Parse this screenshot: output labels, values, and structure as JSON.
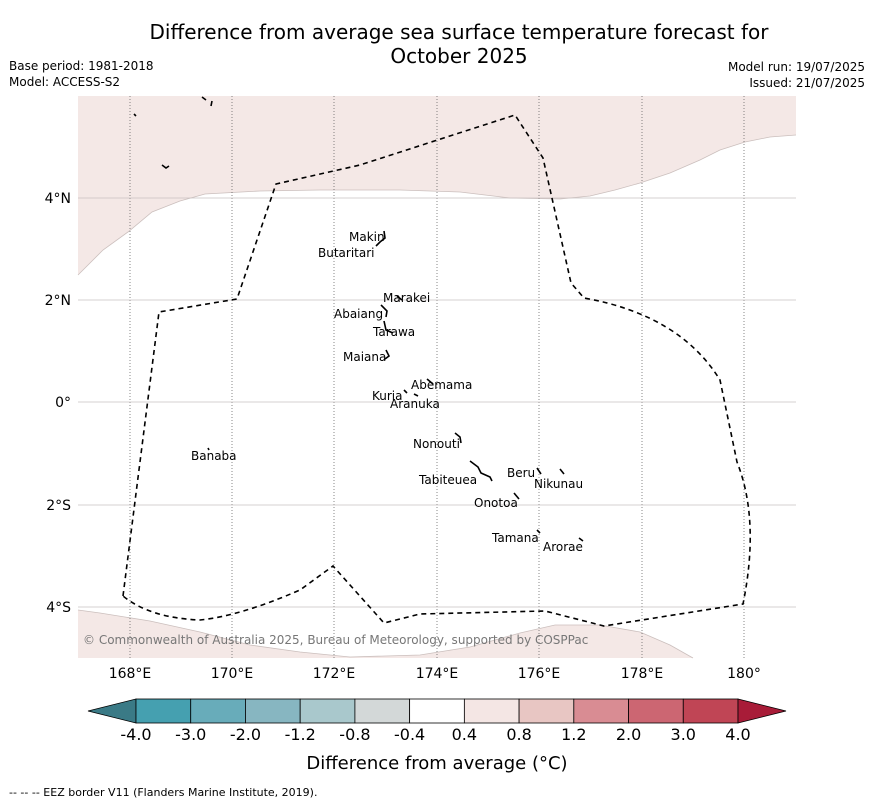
{
  "header": {
    "title_line1": "Difference from average sea surface temperature forecast for",
    "title_line2": "October 2025",
    "base_period": "Base period: 1981-2018",
    "model": "Model: ACCESS-S2",
    "model_run": "Model run: 19/07/2025",
    "issued": "Issued: 21/07/2025"
  },
  "map": {
    "lon_ticks": [
      "168°E",
      "170°E",
      "172°E",
      "174°E",
      "176°E",
      "178°E",
      "180°"
    ],
    "lat_ticks": [
      "4°N",
      "2°N",
      "0°",
      "2°S",
      "4°S"
    ],
    "anomaly_fill_color": "#f4e8e6",
    "islands": [
      {
        "name": "Makin"
      },
      {
        "name": "Butaritari"
      },
      {
        "name": "Marakei"
      },
      {
        "name": "Abaiang"
      },
      {
        "name": "Tarawa"
      },
      {
        "name": "Maiana"
      },
      {
        "name": "Abemama"
      },
      {
        "name": "Kuria"
      },
      {
        "name": "Aranuka"
      },
      {
        "name": "Nonouti"
      },
      {
        "name": "Banaba"
      },
      {
        "name": "Beru"
      },
      {
        "name": "Tabiteuea"
      },
      {
        "name": "Nikunau"
      },
      {
        "name": "Onotoa"
      },
      {
        "name": "Tamana"
      },
      {
        "name": "Arorae"
      }
    ],
    "copyright": "© Commonwealth of Australia 2025, Bureau of Meteorology, supported by COSPPac"
  },
  "colorbar": {
    "labels": [
      "-4.0",
      "-3.0",
      "-2.0",
      "-1.2",
      "-0.8",
      "-0.4",
      "0.4",
      "0.8",
      "1.2",
      "2.0",
      "3.0",
      "4.0"
    ],
    "colors": [
      "#3a7a86",
      "#45a0b0",
      "#68acba",
      "#87b6c1",
      "#a9c8cc",
      "#d3d8d8",
      "#ffffff",
      "#f4e6e4",
      "#e8c6c3",
      "#d98c93",
      "#cc6672",
      "#c04555",
      "#a81c38"
    ],
    "title": "Difference from average (°C)"
  },
  "footer": "--  --  -- EEZ border V11 (Flanders Marine Institute, 2019)."
}
